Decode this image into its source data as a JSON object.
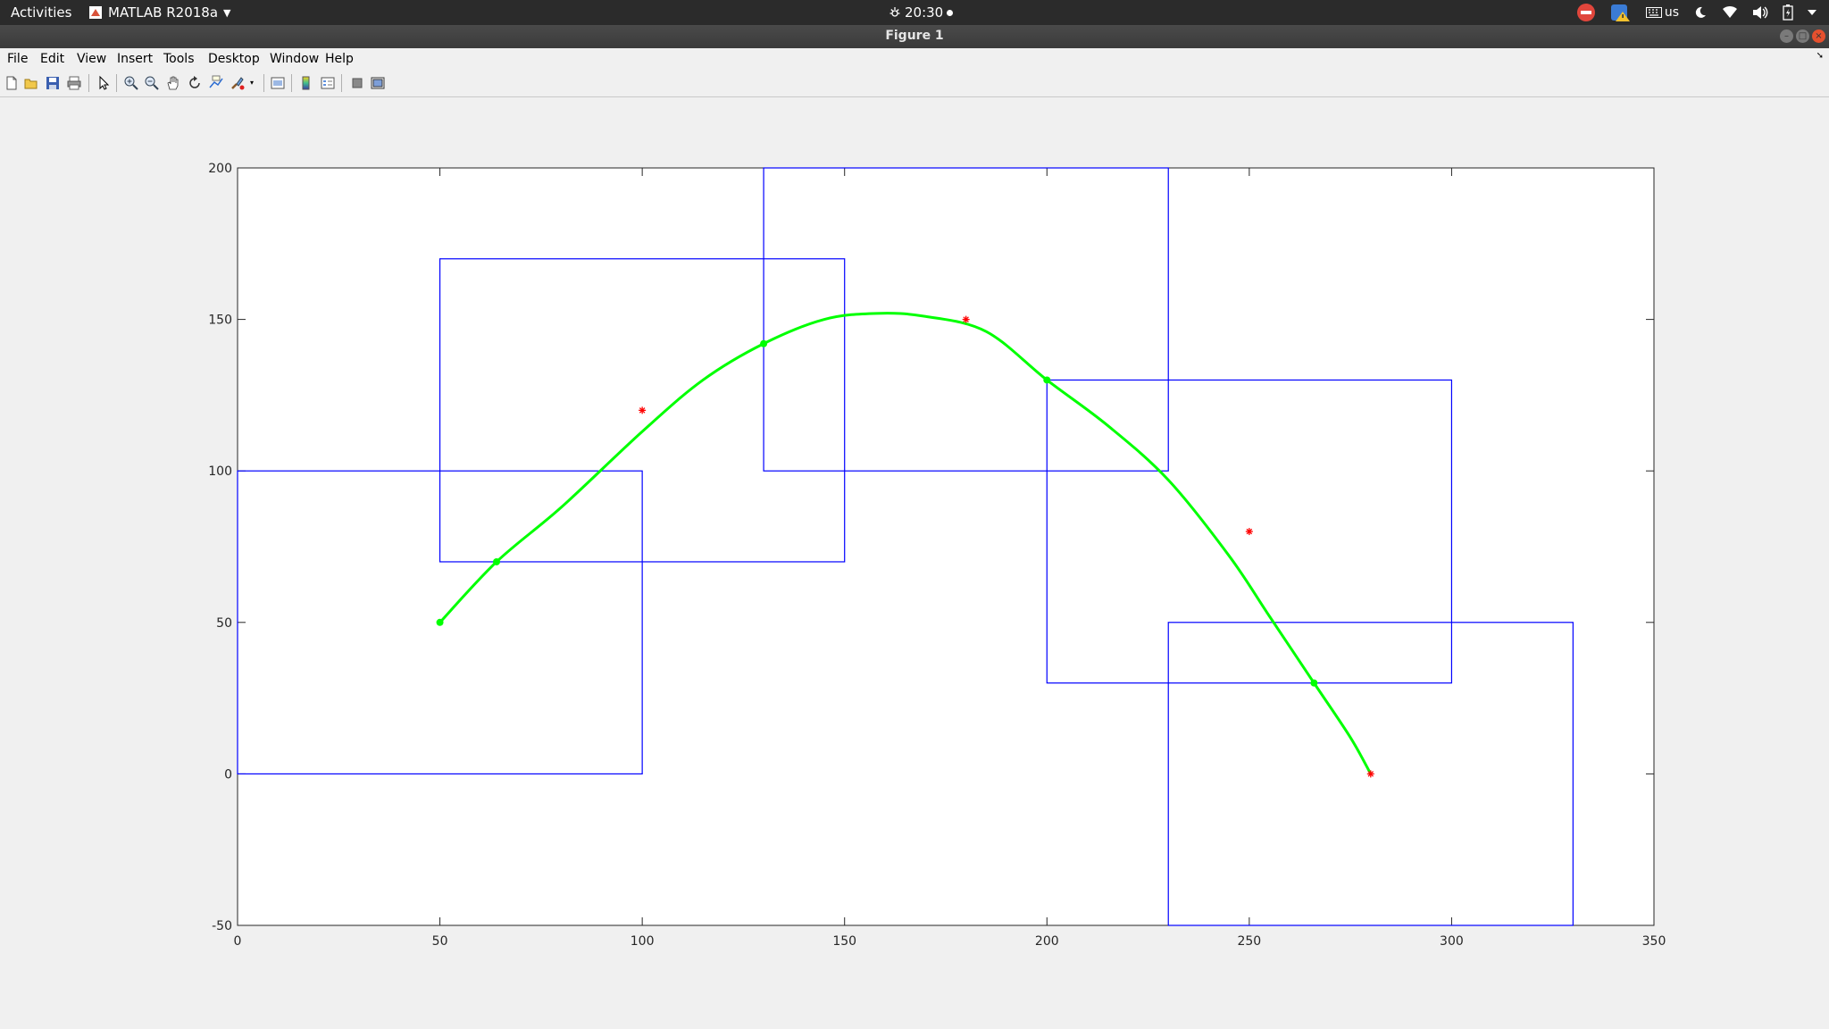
{
  "topbar": {
    "activities": "Activities",
    "app_name": "MATLAB R2018a",
    "clock": "20:30",
    "keyboard_layout": "us"
  },
  "window": {
    "title": "Figure 1"
  },
  "menu": {
    "items": [
      "File",
      "Edit",
      "View",
      "Insert",
      "Tools",
      "Desktop",
      "Window",
      "Help"
    ]
  },
  "toolbar": {
    "icons": [
      "new-figure-icon",
      "open-file-icon",
      "save-icon",
      "print-icon",
      "edit-plot-arrow-icon",
      "zoom-in-icon",
      "zoom-out-icon",
      "pan-hand-icon",
      "rotate-3d-icon",
      "data-cursor-icon",
      "brush-icon",
      "link-plot-icon",
      "colorbar-icon",
      "legend-icon",
      "hide-plot-tools-icon",
      "show-plot-tools-icon"
    ]
  },
  "chart_data": {
    "type": "line",
    "title": "",
    "xlabel": "",
    "ylabel": "",
    "xlim": [
      0,
      350
    ],
    "ylim": [
      -50,
      200
    ],
    "xticks": [
      0,
      50,
      100,
      150,
      200,
      250,
      300,
      350
    ],
    "yticks": [
      -50,
      0,
      50,
      100,
      150,
      200
    ],
    "xtick_labels": [
      "0",
      "50",
      "100",
      "150",
      "200",
      "250",
      "300",
      "350"
    ],
    "ytick_labels": [
      "-50",
      "0",
      "50",
      "100",
      "150",
      "200"
    ],
    "grid": false,
    "colors": {
      "rectangles": "#0000ff",
      "curve": "#00ff00",
      "markers": "#ff0000"
    },
    "rectangles": [
      {
        "x": [
          0,
          100
        ],
        "y": [
          0,
          100
        ]
      },
      {
        "x": [
          50,
          150
        ],
        "y": [
          70,
          170
        ]
      },
      {
        "x": [
          130,
          230
        ],
        "y": [
          100,
          200
        ]
      },
      {
        "x": [
          200,
          300
        ],
        "y": [
          30,
          130
        ]
      },
      {
        "x": [
          230,
          330
        ],
        "y": [
          -50,
          50
        ]
      }
    ],
    "curve": {
      "name": "",
      "x": [
        50,
        64,
        80,
        100,
        115,
        130,
        145,
        158,
        170,
        185,
        200,
        215,
        230,
        245,
        255,
        266,
        275,
        280
      ],
      "y": [
        50,
        70,
        88,
        113,
        130,
        142,
        150,
        152,
        151,
        146,
        130,
        115,
        97,
        72,
        52,
        30,
        12,
        0
      ]
    },
    "curve_points": {
      "x": [
        50,
        64,
        130,
        200,
        266
      ],
      "y": [
        50,
        70,
        142,
        130,
        30
      ]
    },
    "red_markers": {
      "x": [
        100,
        180,
        250,
        280
      ],
      "y": [
        120,
        150,
        80,
        0
      ]
    }
  }
}
